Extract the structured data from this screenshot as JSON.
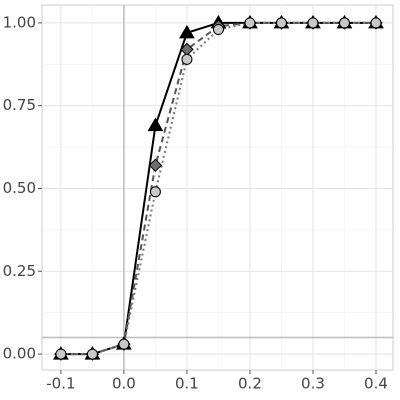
{
  "chart_data": {
    "type": "line",
    "x": [
      -0.1,
      -0.05,
      0,
      0.05,
      0.1,
      0.15,
      0.2,
      0.25,
      0.3,
      0.35,
      0.4
    ],
    "series": [
      {
        "color": "#000000",
        "marker_fill": "#000000",
        "marker": "triangle",
        "dash": "solid",
        "values": [
          0,
          0,
          0.03,
          0.69,
          0.97,
          1,
          1,
          1,
          1,
          1,
          1
        ]
      },
      {
        "color": "#555555",
        "marker_fill": "#6e6e6e",
        "marker": "diamond",
        "dash": "dashed",
        "values": [
          0,
          0,
          0.03,
          0.57,
          0.92,
          0.99,
          1,
          1,
          1,
          1,
          1
        ]
      },
      {
        "color": "#777777",
        "marker_fill": "#c8c8c8",
        "marker": "circle",
        "dash": "dotted",
        "values": [
          0,
          0,
          0.03,
          0.49,
          0.89,
          0.98,
          1,
          1,
          1,
          1,
          1
        ]
      }
    ],
    "xlim": [
      -0.13,
      0.427
    ],
    "ylim": [
      -0.048,
      1.054
    ],
    "xticks": [
      -0.1,
      {
        "value": 0,
        "label": "0.0"
      },
      0.1,
      0.2,
      0.3,
      0.4
    ],
    "yticks": [
      {
        "value": 0,
        "label": "0.00"
      },
      {
        "value": 0.25,
        "label": "0.25"
      },
      {
        "value": 0.5,
        "label": "0.50"
      },
      {
        "value": 0.75,
        "label": "0.75"
      },
      {
        "value": 1,
        "label": "1.00"
      }
    ],
    "grid": true,
    "minor_grid": true,
    "vline": 0,
    "hline": 0.05
  }
}
